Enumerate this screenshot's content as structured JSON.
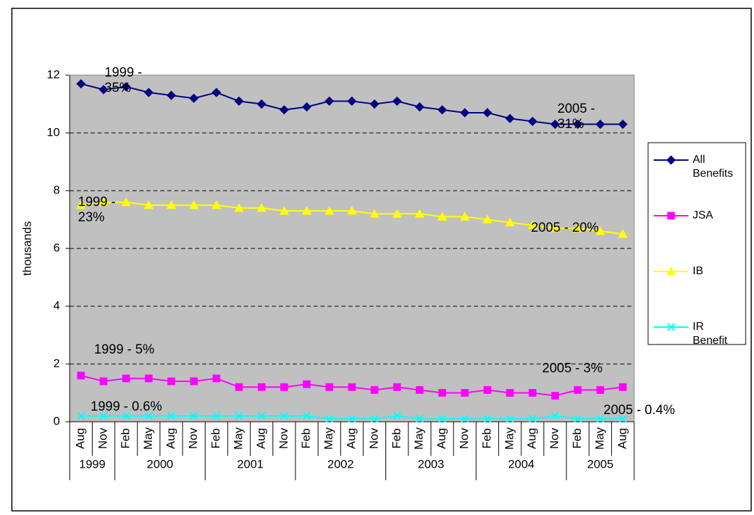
{
  "chart_data": {
    "type": "line",
    "y_label": "thousands",
    "categories": [
      "Aug",
      "Nov",
      "Feb",
      "May",
      "Aug",
      "Nov",
      "Feb",
      "May",
      "Aug",
      "Nov",
      "Feb",
      "May",
      "Aug",
      "Nov",
      "Feb",
      "May",
      "Aug",
      "Nov",
      "Feb",
      "May",
      "Aug",
      "Nov",
      "Feb",
      "May",
      "Aug"
    ],
    "category_years": [
      "1999",
      null,
      "2000",
      null,
      null,
      null,
      "2001",
      null,
      null,
      null,
      "2002",
      null,
      null,
      null,
      "2003",
      null,
      null,
      null,
      "2004",
      null,
      null,
      null,
      "2005",
      null,
      null
    ],
    "series": [
      {
        "name": "All Benefits",
        "color": "#000080",
        "marker": "diamond",
        "values": [
          11.7,
          11.5,
          11.6,
          11.4,
          11.3,
          11.2,
          11.4,
          11.1,
          11.0,
          10.8,
          10.9,
          11.1,
          11.1,
          11.0,
          11.1,
          10.9,
          10.8,
          10.7,
          10.7,
          10.5,
          10.4,
          10.3,
          10.3,
          10.3,
          10.3
        ]
      },
      {
        "name": "JSA",
        "color": "#ff00ff",
        "marker": "square",
        "values": [
          1.6,
          1.4,
          1.5,
          1.5,
          1.4,
          1.4,
          1.5,
          1.2,
          1.2,
          1.2,
          1.3,
          1.2,
          1.2,
          1.1,
          1.2,
          1.1,
          1.0,
          1.0,
          1.1,
          1.0,
          1.0,
          0.9,
          1.1,
          1.1,
          1.2
        ]
      },
      {
        "name": "IB",
        "color": "#ffff00",
        "marker": "triangle",
        "values": [
          7.5,
          7.6,
          7.6,
          7.5,
          7.5,
          7.5,
          7.5,
          7.4,
          7.4,
          7.3,
          7.3,
          7.3,
          7.3,
          7.2,
          7.2,
          7.2,
          7.1,
          7.1,
          7.0,
          6.9,
          6.8,
          6.7,
          6.7,
          6.6,
          6.5
        ]
      },
      {
        "name": "IR Benefit",
        "color": "#00ffff",
        "marker": "x",
        "values": [
          0.2,
          0.2,
          0.2,
          0.2,
          0.2,
          0.2,
          0.2,
          0.2,
          0.2,
          0.2,
          0.2,
          0.1,
          0.1,
          0.1,
          0.2,
          0.1,
          0.1,
          0.1,
          0.1,
          0.1,
          0.1,
          0.2,
          0.1,
          0.1,
          0.1
        ]
      }
    ],
    "annotations": [
      "1999 - 35%",
      "2005 - 31%",
      "1999 - 23%",
      "2005 - 20%",
      "1999 - 5%",
      "2005 - 3%",
      "1999 - 0.6%",
      "2005 - 0.4%"
    ],
    "ylim": [
      0,
      12
    ],
    "yticks": [
      0,
      2,
      4,
      6,
      8,
      10,
      12
    ],
    "grid": true,
    "legend": "right"
  }
}
